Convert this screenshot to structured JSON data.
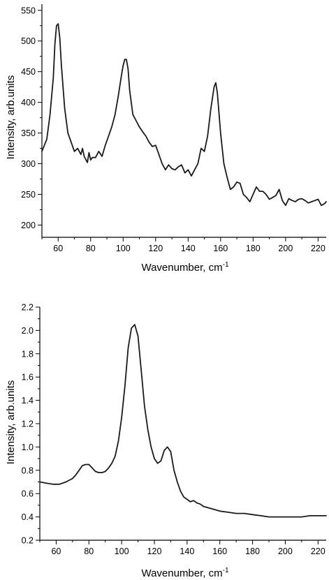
{
  "chart_data": [
    {
      "type": "line",
      "title": "",
      "xlabel": "Wavenumber, cm",
      "xlabel_superscript": "-1",
      "ylabel": "Intensity, arb.units",
      "xlim": [
        50,
        225
      ],
      "ylim": [
        180,
        560
      ],
      "xticks": [
        60,
        80,
        100,
        120,
        140,
        160,
        180,
        200,
        220
      ],
      "yticks": [
        200,
        250,
        300,
        350,
        400,
        450,
        500,
        550
      ],
      "ytick_labels": [
        "200",
        "250",
        "300",
        "350",
        "400",
        "450",
        "500",
        "550"
      ],
      "grid": false,
      "series": [
        {
          "x": [
            50,
            53,
            55,
            57,
            58,
            59,
            60,
            61,
            62,
            64,
            66,
            68,
            70,
            72,
            74,
            75,
            76,
            78,
            79,
            80,
            81,
            83,
            85,
            87,
            89,
            91,
            93,
            95,
            97,
            99,
            100,
            101,
            102,
            103,
            104,
            106,
            108,
            110,
            112,
            114,
            116,
            118,
            120,
            122,
            124,
            126,
            128,
            130,
            132,
            134,
            136,
            138,
            140,
            142,
            144,
            146,
            148,
            150,
            152,
            154,
            156,
            157,
            158,
            160,
            162,
            164,
            166,
            168,
            170,
            172,
            174,
            176,
            178,
            180,
            182,
            184,
            186,
            188,
            190,
            192,
            194,
            196,
            198,
            200,
            202,
            204,
            206,
            208,
            210,
            212,
            214,
            216,
            218,
            220,
            222,
            224,
            225
          ],
          "y": [
            320,
            340,
            380,
            440,
            495,
            525,
            528,
            505,
            460,
            390,
            350,
            335,
            320,
            325,
            315,
            325,
            312,
            302,
            318,
            306,
            310,
            310,
            320,
            312,
            330,
            345,
            360,
            380,
            410,
            445,
            460,
            470,
            470,
            455,
            420,
            380,
            370,
            360,
            352,
            345,
            335,
            328,
            330,
            315,
            300,
            290,
            298,
            292,
            290,
            295,
            298,
            285,
            290,
            280,
            290,
            300,
            325,
            320,
            345,
            390,
            425,
            432,
            415,
            350,
            300,
            278,
            258,
            262,
            270,
            268,
            250,
            245,
            238,
            250,
            262,
            255,
            255,
            250,
            242,
            245,
            248,
            258,
            240,
            232,
            243,
            240,
            238,
            242,
            243,
            240,
            236,
            238,
            240,
            242,
            232,
            235,
            238
          ]
        }
      ]
    },
    {
      "type": "line",
      "title": "",
      "xlabel": "Wavenumber, cm",
      "xlabel_superscript": "-1",
      "ylabel": "Intensity, arb.units",
      "xlim": [
        50,
        225
      ],
      "ylim": [
        0.2,
        2.2
      ],
      "xticks": [
        60,
        80,
        100,
        120,
        140,
        160,
        180,
        200,
        220
      ],
      "yticks": [
        0.2,
        0.4,
        0.6,
        0.8,
        1.0,
        1.2,
        1.4,
        1.6,
        1.8,
        2.0,
        2.2
      ],
      "ytick_labels": [
        "0.2",
        "0.4",
        "0.6",
        "0.8",
        "1.0",
        "1.2",
        "1.4",
        "1.6",
        "1.8",
        "2.0",
        "2.2"
      ],
      "grid": false,
      "series": [
        {
          "x": [
            50,
            54,
            58,
            62,
            66,
            70,
            72,
            74,
            76,
            78,
            80,
            82,
            84,
            86,
            88,
            90,
            92,
            94,
            96,
            98,
            100,
            102,
            104,
            106,
            108,
            110,
            112,
            114,
            116,
            118,
            120,
            122,
            124,
            126,
            128,
            130,
            132,
            134,
            136,
            138,
            140,
            142,
            144,
            146,
            148,
            150,
            155,
            160,
            165,
            170,
            175,
            180,
            185,
            190,
            195,
            200,
            205,
            210,
            215,
            220,
            225
          ],
          "y": [
            0.7,
            0.69,
            0.68,
            0.68,
            0.7,
            0.73,
            0.76,
            0.8,
            0.84,
            0.85,
            0.85,
            0.82,
            0.79,
            0.78,
            0.78,
            0.79,
            0.82,
            0.86,
            0.92,
            1.05,
            1.25,
            1.52,
            1.85,
            2.02,
            2.05,
            1.95,
            1.65,
            1.35,
            1.15,
            1.0,
            0.9,
            0.86,
            0.88,
            0.97,
            1.0,
            0.96,
            0.8,
            0.7,
            0.62,
            0.57,
            0.55,
            0.53,
            0.54,
            0.52,
            0.51,
            0.49,
            0.47,
            0.45,
            0.44,
            0.43,
            0.43,
            0.42,
            0.41,
            0.4,
            0.4,
            0.4,
            0.4,
            0.4,
            0.41,
            0.41,
            0.41
          ]
        }
      ]
    }
  ]
}
